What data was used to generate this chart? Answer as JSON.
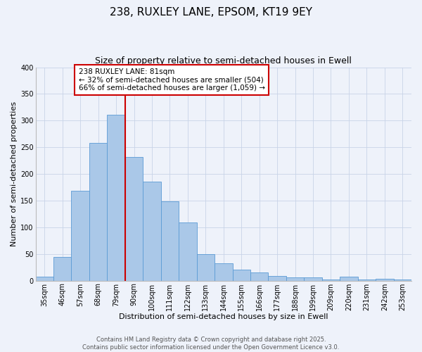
{
  "title": "238, RUXLEY LANE, EPSOM, KT19 9EY",
  "subtitle": "Size of property relative to semi-detached houses in Ewell",
  "xlabel": "Distribution of semi-detached houses by size in Ewell",
  "ylabel": "Number of semi-detached properties",
  "categories": [
    "35sqm",
    "46sqm",
    "57sqm",
    "68sqm",
    "79sqm",
    "90sqm",
    "100sqm",
    "111sqm",
    "122sqm",
    "133sqm",
    "144sqm",
    "155sqm",
    "166sqm",
    "177sqm",
    "188sqm",
    "199sqm",
    "209sqm",
    "220sqm",
    "231sqm",
    "242sqm",
    "253sqm"
  ],
  "bar_heights": [
    7,
    45,
    169,
    258,
    311,
    232,
    185,
    149,
    109,
    50,
    33,
    21,
    16,
    9,
    6,
    6,
    2,
    7,
    2,
    4,
    2
  ],
  "bar_color": "#aac8e8",
  "bar_edge_color": "#5b9bd5",
  "vline_index": 4,
  "vline_color": "#cc0000",
  "annotation_text": "238 RUXLEY LANE: 81sqm\n← 32% of semi-detached houses are smaller (504)\n66% of semi-detached houses are larger (1,059) →",
  "annotation_box_edgecolor": "#cc0000",
  "background_color": "#eef2fa",
  "grid_color": "#c8d4e8",
  "ylim": [
    0,
    400
  ],
  "yticks": [
    0,
    50,
    100,
    150,
    200,
    250,
    300,
    350,
    400
  ],
  "title_fontsize": 11,
  "subtitle_fontsize": 9,
  "axis_label_fontsize": 8,
  "tick_fontsize": 7,
  "footer_text": "Contains HM Land Registry data © Crown copyright and database right 2025.\nContains public sector information licensed under the Open Government Licence v3.0."
}
